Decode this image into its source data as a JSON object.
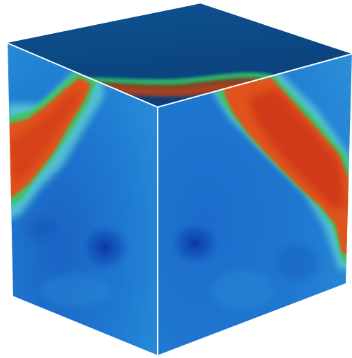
{
  "scene": {
    "background_color": "#ffffff",
    "edge_color": "#ffffff",
    "colormap": [
      "#0a2f9a",
      "#1266c8",
      "#2a86d6",
      "#47a9e0",
      "#58c7d2",
      "#2fbf6a",
      "#8ccf2a",
      "#e6a21c",
      "#e5561c",
      "#c62a12"
    ],
    "faces": {
      "top_color": "#0d4a86",
      "left_base_color": "#1f78cf",
      "right_base_color": "#1d72cc",
      "hot_band_color": "#e0521d",
      "hot_band_core_color": "#d23a14",
      "transition_color": "#3fc266",
      "low_spot_color": "#0c3aa8"
    }
  }
}
